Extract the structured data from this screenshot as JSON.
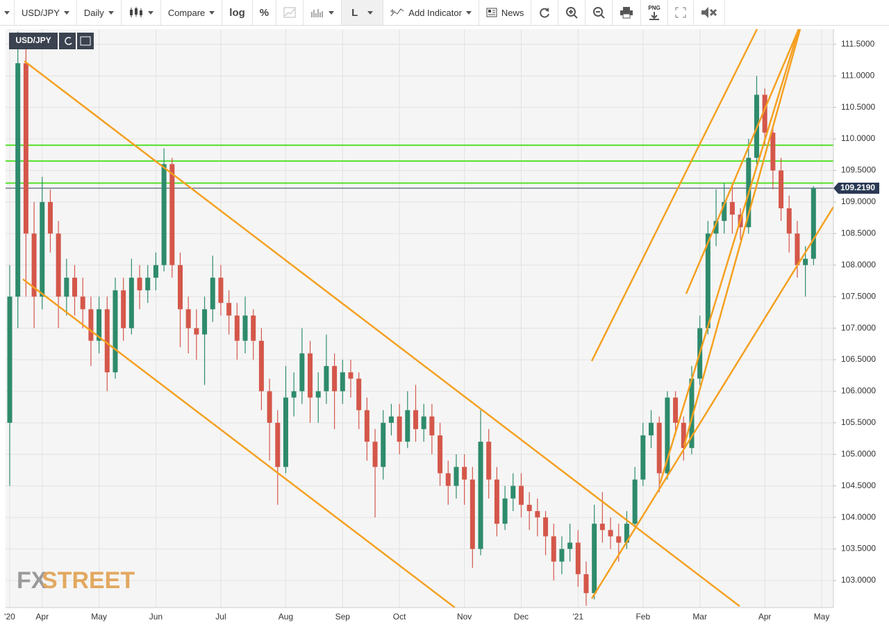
{
  "toolbar": {
    "symbol": "USD/JPY",
    "interval": "Daily",
    "compare": "Compare",
    "log": "log",
    "percent": "%",
    "line": "L",
    "add_indicator": "Add Indicator",
    "news": "News",
    "png": "PNG"
  },
  "logo": {
    "fx": "FX",
    "street": "STREET"
  },
  "chart_data": {
    "type": "candlestick",
    "symbol": "USD/JPY",
    "up_color": "#2e8b6c",
    "down_color": "#d4574a",
    "grid": true,
    "ylim": [
      102.57,
      111.74
    ],
    "yticks": [
      {
        "value": 103,
        "label": "103.0000"
      },
      {
        "value": 103.5,
        "label": "103.5000"
      },
      {
        "value": 104,
        "label": "104.0000"
      },
      {
        "value": 104.5,
        "label": "104.5000"
      },
      {
        "value": 105,
        "label": "105.0000"
      },
      {
        "value": 105.5,
        "label": "105.5000"
      },
      {
        "value": 106,
        "label": "106.0000"
      },
      {
        "value": 106.5,
        "label": "106.5000"
      },
      {
        "value": 107,
        "label": "107.0000"
      },
      {
        "value": 107.5,
        "label": "107.5000"
      },
      {
        "value": 108,
        "label": "108.0000"
      },
      {
        "value": 108.5,
        "label": "108.5000"
      },
      {
        "value": 109,
        "label": "109.0000"
      },
      {
        "value": 109.5,
        "label": "109.5000"
      },
      {
        "value": 110,
        "label": "110.0000"
      },
      {
        "value": 110.5,
        "label": "110.5000"
      },
      {
        "value": 111,
        "label": "111.0000"
      },
      {
        "value": 111.5,
        "label": "111.5000"
      }
    ],
    "categories": [
      "'20",
      null,
      null,
      null,
      "Apr",
      null,
      null,
      null,
      null,
      null,
      null,
      "May",
      null,
      null,
      null,
      null,
      null,
      null,
      "Jun",
      null,
      null,
      null,
      null,
      null,
      null,
      null,
      "Jul",
      null,
      null,
      null,
      null,
      null,
      null,
      null,
      "Aug",
      null,
      null,
      null,
      null,
      null,
      null,
      "Sep",
      null,
      null,
      null,
      null,
      null,
      null,
      "Oct",
      null,
      null,
      null,
      null,
      null,
      null,
      null,
      "Nov",
      null,
      null,
      null,
      null,
      null,
      null,
      "Dec",
      null,
      null,
      null,
      null,
      null,
      null,
      "'21",
      null,
      null,
      null,
      null,
      null,
      null,
      null,
      "Feb",
      null,
      null,
      null,
      null,
      null,
      null,
      "Mar",
      null,
      null,
      null,
      null,
      null,
      null,
      null,
      "Apr",
      null,
      null,
      null,
      null,
      null,
      null,
      "May"
    ],
    "open": [
      105.5,
      107.5,
      111.2,
      108.5,
      107.5,
      109.0,
      108.5,
      107.5,
      107.8,
      107.5,
      107.3,
      106.8,
      107.3,
      106.3,
      107.6,
      107.0,
      107.8,
      107.6,
      107.8,
      108.0,
      109.6,
      108.0,
      107.3,
      107.0,
      106.9,
      107.3,
      107.8,
      107.4,
      107.2,
      106.8,
      107.2,
      106.8,
      106.0,
      105.5,
      104.8,
      105.9,
      106.0,
      106.6,
      105.9,
      106.0,
      106.4,
      106.0,
      106.3,
      106.2,
      105.7,
      105.2,
      104.8,
      105.5,
      105.6,
      105.2,
      105.7,
      105.4,
      105.6,
      105.3,
      104.7,
      104.5,
      104.8,
      104.6,
      103.5,
      105.2,
      104.6,
      103.9,
      104.3,
      104.5,
      104.2,
      104.1,
      104.0,
      103.7,
      103.3,
      103.5,
      103.6,
      103.1,
      102.8,
      103.9,
      103.8,
      103.7,
      103.6,
      103.9,
      104.6,
      105.3,
      105.5,
      104.7,
      105.9,
      105.5,
      105.1,
      106.2,
      107.0,
      108.5,
      108.7,
      109.0,
      108.8,
      108.6,
      109.7,
      110.7,
      110.1,
      109.5,
      108.9,
      108.5,
      108.0,
      108.1,
      null
    ],
    "high": [
      108.0,
      111.7,
      111.5,
      109.0,
      109.4,
      109.2,
      108.7,
      108.1,
      108.0,
      107.8,
      107.5,
      107.5,
      107.5,
      107.8,
      107.8,
      108.1,
      108.0,
      108.0,
      108.2,
      109.85,
      109.7,
      108.2,
      107.5,
      107.3,
      107.5,
      108.15,
      108.0,
      107.6,
      107.4,
      107.5,
      107.3,
      107.0,
      106.2,
      105.7,
      106.4,
      106.3,
      107.0,
      106.8,
      106.3,
      106.9,
      106.6,
      106.5,
      106.5,
      106.3,
      105.9,
      105.4,
      105.7,
      105.8,
      105.8,
      106.0,
      106.1,
      105.8,
      105.8,
      105.5,
      104.9,
      105.0,
      105.0,
      104.8,
      105.7,
      105.4,
      104.8,
      104.5,
      104.7,
      104.7,
      104.4,
      104.3,
      104.1,
      103.9,
      103.7,
      103.9,
      103.8,
      103.3,
      104.2,
      104.4,
      104.0,
      103.9,
      104.1,
      104.8,
      105.5,
      105.7,
      105.6,
      106.0,
      106.0,
      105.6,
      106.4,
      107.2,
      108.7,
      109.2,
      109.3,
      109.3,
      108.9,
      110.0,
      111.0,
      110.8,
      110.2,
      109.7,
      109.1,
      108.7,
      108.3,
      109.25,
      null
    ],
    "low": [
      104.5,
      107.0,
      107.5,
      107.0,
      107.3,
      108.2,
      107.0,
      107.2,
      107.2,
      107.0,
      106.4,
      106.6,
      106.0,
      106.2,
      106.8,
      106.9,
      107.3,
      107.4,
      107.6,
      107.9,
      107.8,
      106.7,
      106.6,
      106.5,
      106.1,
      107.1,
      107.2,
      106.9,
      106.5,
      106.6,
      106.5,
      105.7,
      104.9,
      104.2,
      104.7,
      105.6,
      105.8,
      105.5,
      105.5,
      105.8,
      105.4,
      105.8,
      105.9,
      105.4,
      104.9,
      104.0,
      104.6,
      105.3,
      105.0,
      105.1,
      105.2,
      105.2,
      105.0,
      104.5,
      104.2,
      104.3,
      104.2,
      103.2,
      103.4,
      104.3,
      103.7,
      103.8,
      104.1,
      104.0,
      103.8,
      103.7,
      103.4,
      103.0,
      103.1,
      103.3,
      102.9,
      102.6,
      102.7,
      103.6,
      103.5,
      103.3,
      103.5,
      103.8,
      104.5,
      105.1,
      104.4,
      104.6,
      105.3,
      104.9,
      105.0,
      106.1,
      106.9,
      108.3,
      108.5,
      108.5,
      108.4,
      108.5,
      109.6,
      109.9,
      109.2,
      108.7,
      108.2,
      107.8,
      107.5,
      108.0,
      null
    ],
    "close": [
      107.5,
      111.2,
      108.5,
      107.5,
      109.0,
      108.5,
      107.5,
      107.8,
      107.5,
      107.3,
      106.8,
      107.3,
      106.3,
      107.6,
      107.0,
      107.8,
      107.6,
      107.8,
      108.0,
      109.6,
      108.0,
      107.3,
      107.0,
      106.9,
      107.3,
      107.8,
      107.4,
      107.2,
      106.8,
      107.2,
      106.8,
      106.0,
      105.5,
      104.8,
      105.9,
      106.0,
      106.6,
      105.9,
      106.0,
      106.4,
      106.0,
      106.3,
      106.2,
      105.7,
      105.2,
      104.8,
      105.5,
      105.6,
      105.2,
      105.7,
      105.4,
      105.6,
      105.3,
      104.7,
      104.5,
      104.8,
      104.6,
      103.5,
      105.2,
      104.6,
      103.9,
      104.3,
      104.5,
      104.2,
      104.1,
      104.0,
      103.7,
      103.3,
      103.5,
      103.6,
      103.1,
      102.8,
      103.9,
      103.8,
      103.7,
      103.6,
      103.9,
      104.6,
      105.3,
      105.5,
      104.7,
      105.9,
      105.5,
      105.1,
      106.2,
      107.0,
      108.5,
      108.7,
      109.0,
      108.8,
      108.6,
      109.7,
      110.7,
      110.1,
      109.5,
      108.9,
      108.5,
      108.0,
      108.1,
      109.219,
      null
    ],
    "last_price": {
      "value": 109.219,
      "label": "109.2190",
      "color": "#2b3a55"
    },
    "levels": [
      109.9,
      109.65,
      109.3
    ],
    "level_color": "#55e02a"
  }
}
